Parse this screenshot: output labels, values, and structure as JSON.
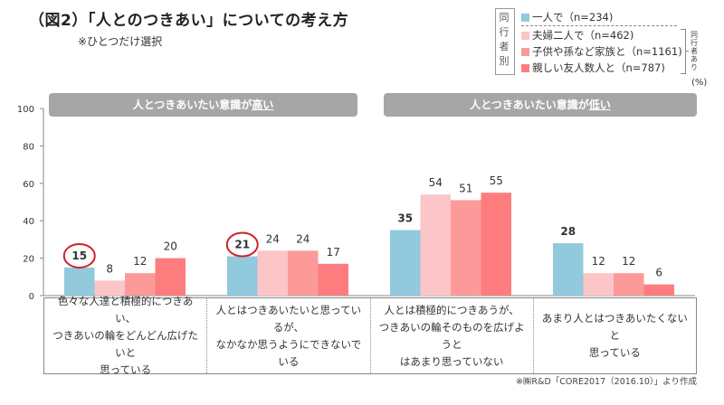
{
  "title": "（図2）「人とのつきあい」についての考え方",
  "subtitle": "※ひとつだけ選択",
  "legend": {
    "vertical_label": [
      "同",
      "行",
      "者",
      "別"
    ],
    "side_label": [
      "同",
      "行",
      "者",
      "あ",
      "り"
    ],
    "items": [
      {
        "label": "一人で（n=234)",
        "color": "#92c9dc"
      },
      {
        "label": "夫婦二人で（n=462)",
        "color": "#fcc5c7"
      },
      {
        "label": "子供や孫など家族と（n=1161)",
        "color": "#fc9a9a"
      },
      {
        "label": "親しい友人数人と（n=787)",
        "color": "#fd7d7f"
      }
    ]
  },
  "unit": "(%)",
  "group_headers": [
    {
      "text": "人とつきあいたい意識が",
      "emph": "高い"
    },
    {
      "text": "人とつきあいたい意識が",
      "emph": "低い"
    }
  ],
  "categories": [
    "色々な人達と積極的につきあい、\nつきあいの輪をどんどん広げたいと\n思っている",
    "人とはつきあいたいと思っているが、\nなかなか思うようにできないでいる",
    "人とは積極的につきあうが、\nつきあいの輪そのものを広げようと\nはあまり思っていない",
    "あまり人とはつきあいたくないと\n思っている"
  ],
  "source": "※㈱R&D「CORE2017（2016.10）」より作成",
  "chart_data": {
    "type": "bar",
    "title": "（図2）「人とのつきあい」についての考え方",
    "xlabel": "",
    "ylabel": "(%)",
    "ylim": [
      0,
      100
    ],
    "yticks": [
      0,
      20,
      40,
      60,
      80,
      100
    ],
    "grid": false,
    "legend_position": "top-right",
    "categories": [
      "色々な人達と積極的につきあい、つきあいの輪をどんどん広げたいと思っている",
      "人とはつきあいたいと思っているが、なかなか思うようにできないでいる",
      "人とは積極的につきあうが、つきあいの輪そのものを広げようとはあまり思っていない",
      "あまり人とはつきあいたくないと思っている"
    ],
    "series": [
      {
        "name": "一人で（n=234)",
        "color": "#92c9dc",
        "values": [
          15,
          21,
          35,
          28
        ],
        "bold_labels": true
      },
      {
        "name": "夫婦二人で（n=462)",
        "color": "#fcc5c7",
        "values": [
          8,
          24,
          54,
          12
        ]
      },
      {
        "name": "子供や孫など家族と（n=1161)",
        "color": "#fc9a9a",
        "values": [
          12,
          24,
          51,
          12
        ]
      },
      {
        "name": "親しい友人数人と（n=787)",
        "color": "#fd7d7f",
        "values": [
          20,
          17,
          55,
          6
        ]
      }
    ],
    "annotations": [
      {
        "type": "circle",
        "series": 0,
        "category": 0,
        "note": "15 circled in red"
      },
      {
        "type": "circle",
        "series": 0,
        "category": 1,
        "note": "21 circled in red"
      }
    ],
    "group_headers": [
      "人とつきあいたい意識が高い",
      "人とつきあいたい意識が低い"
    ]
  }
}
